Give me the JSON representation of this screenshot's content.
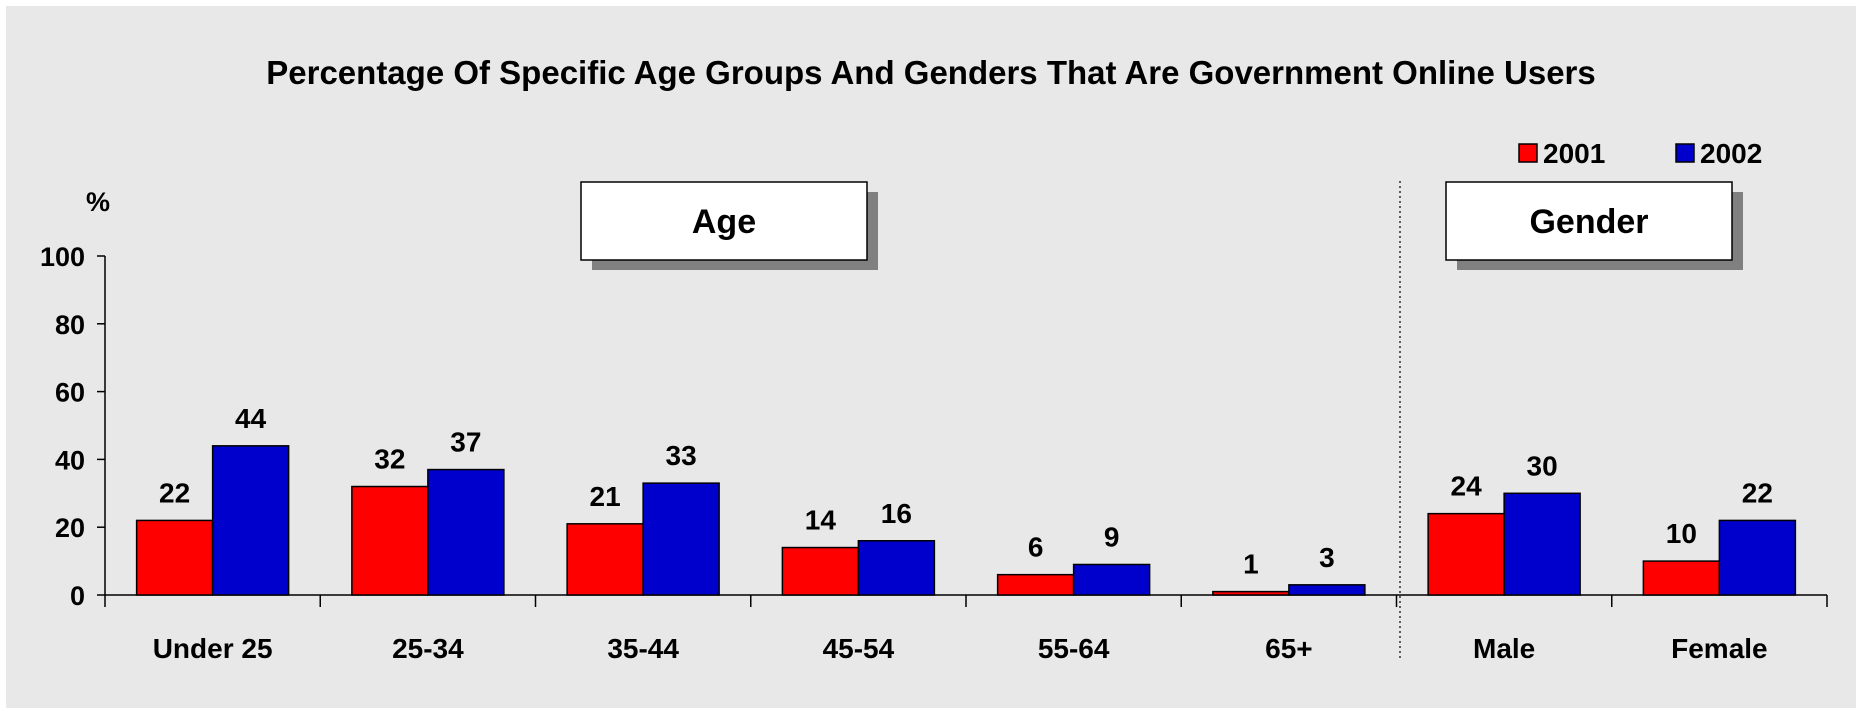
{
  "chart_data": {
    "type": "bar",
    "title": "Percentage Of Specific Age Groups And Genders That Are Government Online Users",
    "ylabel": "%",
    "ylim": [
      0,
      100
    ],
    "yticks": [
      "0",
      "20",
      "40",
      "60",
      "80",
      "100"
    ],
    "categories": [
      "Under 25",
      "25-34",
      "35-44",
      "45-54",
      "55-64",
      "65+",
      "Male",
      "Female"
    ],
    "series": [
      {
        "name": "2001",
        "color": "#ff0000",
        "values": [
          22,
          32,
          21,
          14,
          6,
          1,
          24,
          10
        ]
      },
      {
        "name": "2002",
        "color": "#0000cc",
        "values": [
          44,
          37,
          33,
          16,
          9,
          3,
          30,
          22
        ]
      }
    ],
    "groups": [
      {
        "label": "Age",
        "categories": [
          "Under 25",
          "25-34",
          "35-44",
          "45-54",
          "55-64",
          "65+"
        ]
      },
      {
        "label": "Gender",
        "categories": [
          "Male",
          "Female"
        ]
      }
    ],
    "legend_position": "top-right",
    "grid": false
  }
}
